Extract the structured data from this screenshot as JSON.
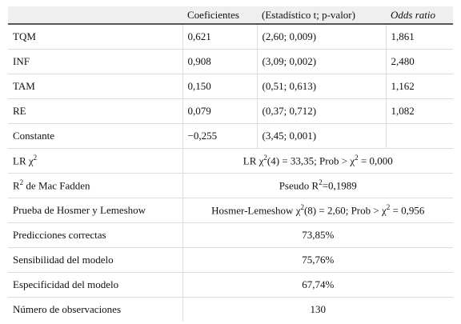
{
  "table": {
    "columns": [
      "Coeficientes",
      "(Estadístico t; p-valor)",
      "Odds ratio"
    ],
    "rows": [
      {
        "label": [
          "TQM"
        ],
        "cells": [
          "0,621",
          "(2,60; 0,009)",
          "1,861"
        ]
      },
      {
        "label": [
          "INF"
        ],
        "cells": [
          "0,908",
          "(3,09; 0,002)",
          "2,480"
        ]
      },
      {
        "label": [
          "TAM"
        ],
        "cells": [
          "0,150",
          "(0,51; 0,613)",
          "1,162"
        ]
      },
      {
        "label": [
          "RE"
        ],
        "cells": [
          "0,079",
          "(0,37; 0,712)",
          "1,082"
        ]
      },
      {
        "label": [
          "Constante"
        ],
        "cells": [
          "−0,255",
          "(3,45; 0,001)"
        ]
      },
      {
        "label": [
          "LR χ",
          "2"
        ],
        "merged": [
          "LR χ",
          "2",
          "(4) = 33,35; Prob > χ",
          "2",
          " = 0,000"
        ]
      },
      {
        "label": [
          "R",
          "2",
          " de Mac Fadden"
        ],
        "merged": [
          "Pseudo R",
          "2",
          "=0,1989"
        ]
      },
      {
        "label": [
          "Prueba de Hosmer y Lemeshow"
        ],
        "merged": [
          "Hosmer-Lemeshow χ",
          "2",
          "(8) = 2,60; Prob > χ",
          "2",
          " = 0,956"
        ]
      },
      {
        "label": [
          "Predicciones correctas"
        ],
        "merged": [
          "73,85%"
        ]
      },
      {
        "label": [
          "Sensibilidad del modelo"
        ],
        "merged": [
          "75,76%"
        ]
      },
      {
        "label": [
          "Especificidad del modelo"
        ],
        "merged": [
          "67,74%"
        ]
      },
      {
        "label": [
          "Número de observaciones"
        ],
        "merged": [
          "130"
        ]
      }
    ]
  }
}
